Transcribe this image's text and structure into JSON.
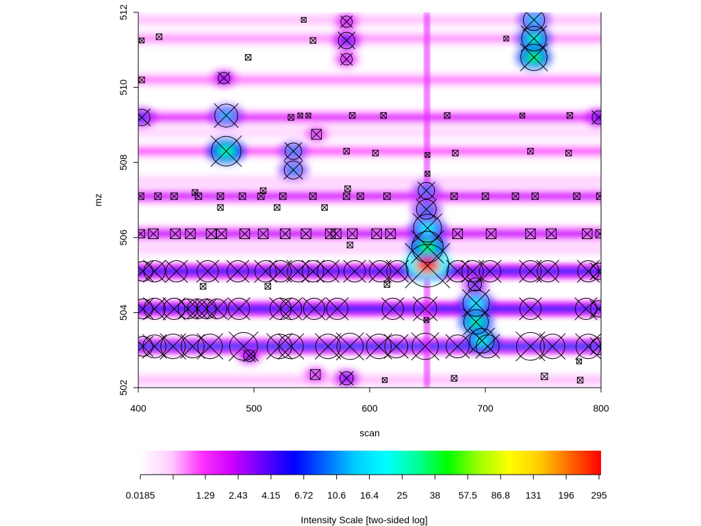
{
  "chart_data": {
    "type": "heatmap",
    "xlabel": "scan",
    "ylabel": "mz",
    "xlim": [
      400,
      800
    ],
    "ylim": [
      502,
      512
    ],
    "x_ticks": [
      400,
      500,
      600,
      700,
      800
    ],
    "y_ticks": [
      502,
      504,
      506,
      508,
      510,
      512
    ],
    "colorbar": {
      "title": "Intensity Scale [two-sided log]",
      "tick_labels": [
        "0.0185",
        "1.29",
        "2.43",
        "4.15",
        "6.72",
        "10.6",
        "16.4",
        "25",
        "38",
        "57.5",
        "86.8",
        "131",
        "196",
        "295"
      ],
      "colors": [
        "#ffffff",
        "#ffccff",
        "#ff33ff",
        "#cc00ff",
        "#6600ff",
        "#0000ff",
        "#0066ff",
        "#00ccff",
        "#00ffff",
        "#00ff99",
        "#00ff00",
        "#99ff00",
        "#ffff00",
        "#ffcc00",
        "#ff6600",
        "#ff0000"
      ]
    },
    "bands": [
      {
        "mz": 503.1,
        "level": 0.38
      },
      {
        "mz": 504.1,
        "level": 0.36
      },
      {
        "mz": 505.1,
        "level": 0.36
      },
      {
        "mz": 506.1,
        "level": 0.2
      },
      {
        "mz": 507.1,
        "level": 0.19
      },
      {
        "mz": 509.2,
        "level": 0.17
      },
      {
        "mz": 508.3,
        "level": 0.12
      },
      {
        "mz": 510.2,
        "level": 0.1
      },
      {
        "mz": 511.3,
        "level": 0.09
      },
      {
        "mz": 502.2,
        "level": 0.07
      },
      {
        "mz": 511.8,
        "level": 0.07
      },
      {
        "mz": 505.7,
        "level": 0.06
      },
      {
        "mz": 507.5,
        "level": 0.06
      },
      {
        "mz": 508.8,
        "level": 0.05
      }
    ],
    "peaks": [
      {
        "scan": 650,
        "mz": 505.25,
        "level": 0.97,
        "size": 2.6
      },
      {
        "scan": 650,
        "mz": 505.75,
        "level": 0.62,
        "size": 1.9
      },
      {
        "scan": 650,
        "mz": 506.25,
        "level": 0.52,
        "size": 1.7
      },
      {
        "scan": 649,
        "mz": 506.75,
        "level": 0.42,
        "size": 1.2
      },
      {
        "scan": 649,
        "mz": 507.25,
        "level": 0.42,
        "size": 1.0
      },
      {
        "scan": 742,
        "mz": 511.8,
        "level": 0.48,
        "size": 1.3
      },
      {
        "scan": 742,
        "mz": 511.3,
        "level": 0.58,
        "size": 1.5
      },
      {
        "scan": 742,
        "mz": 510.8,
        "level": 0.64,
        "size": 1.6
      },
      {
        "scan": 476,
        "mz": 508.3,
        "level": 0.6,
        "size": 1.8
      },
      {
        "scan": 476,
        "mz": 509.25,
        "level": 0.46,
        "size": 1.4
      },
      {
        "scan": 534,
        "mz": 508.3,
        "level": 0.44,
        "size": 1.0
      },
      {
        "scan": 534,
        "mz": 507.8,
        "level": 0.44,
        "size": 1.1
      },
      {
        "scan": 692,
        "mz": 504.25,
        "level": 0.52,
        "size": 1.6
      },
      {
        "scan": 692,
        "mz": 503.75,
        "level": 0.6,
        "size": 1.5
      },
      {
        "scan": 697,
        "mz": 503.25,
        "level": 0.56,
        "size": 1.5
      },
      {
        "scan": 691,
        "mz": 504.75,
        "level": 0.38,
        "size": 0.8
      },
      {
        "scan": 403,
        "mz": 509.2,
        "level": 0.38,
        "size": 1.0
      },
      {
        "scan": 798,
        "mz": 509.2,
        "level": 0.34,
        "size": 0.8
      },
      {
        "scan": 580,
        "mz": 511.25,
        "level": 0.36,
        "size": 1.0
      },
      {
        "scan": 580,
        "mz": 511.75,
        "level": 0.24,
        "size": 0.7
      },
      {
        "scan": 580,
        "mz": 510.75,
        "level": 0.24,
        "size": 0.7
      },
      {
        "scan": 580,
        "mz": 502.25,
        "level": 0.32,
        "size": 0.8
      },
      {
        "scan": 496,
        "mz": 502.85,
        "level": 0.3,
        "size": 0.7
      },
      {
        "scan": 474,
        "mz": 510.25,
        "level": 0.3,
        "size": 0.7
      },
      {
        "scan": 554,
        "mz": 508.75,
        "level": 0.22,
        "size": 0.6
      },
      {
        "scan": 553,
        "mz": 502.35,
        "level": 0.22,
        "size": 0.6
      }
    ],
    "markers": [
      {
        "scan": 404,
        "mz": 503.1,
        "size": 1.2
      },
      {
        "scan": 414,
        "mz": 503.1,
        "size": 1.4
      },
      {
        "scan": 430,
        "mz": 503.1,
        "size": 1.5
      },
      {
        "scan": 447,
        "mz": 503.1,
        "size": 1.4
      },
      {
        "scan": 462,
        "mz": 503.1,
        "size": 1.5
      },
      {
        "scan": 491,
        "mz": 503.1,
        "size": 1.7
      },
      {
        "scan": 522,
        "mz": 503.1,
        "size": 1.5
      },
      {
        "scan": 532,
        "mz": 503.1,
        "size": 1.5
      },
      {
        "scan": 564,
        "mz": 503.1,
        "size": 1.5
      },
      {
        "scan": 583,
        "mz": 503.1,
        "size": 1.6
      },
      {
        "scan": 608,
        "mz": 503.1,
        "size": 1.5
      },
      {
        "scan": 623,
        "mz": 503.1,
        "size": 1.4
      },
      {
        "scan": 648,
        "mz": 503.1,
        "size": 1.6
      },
      {
        "scan": 676,
        "mz": 503.1,
        "size": 1.4
      },
      {
        "scan": 702,
        "mz": 503.1,
        "size": 1.4
      },
      {
        "scan": 739,
        "mz": 503.1,
        "size": 1.7
      },
      {
        "scan": 758,
        "mz": 503.1,
        "size": 1.5
      },
      {
        "scan": 789,
        "mz": 503.1,
        "size": 1.5
      },
      {
        "scan": 798,
        "mz": 503.1,
        "size": 1.0
      },
      {
        "scan": 404,
        "mz": 504.1,
        "size": 1.2
      },
      {
        "scan": 414,
        "mz": 504.1,
        "size": 1.3
      },
      {
        "scan": 431,
        "mz": 504.1,
        "size": 1.3
      },
      {
        "scan": 443,
        "mz": 504.1,
        "size": 1.2
      },
      {
        "scan": 451,
        "mz": 504.1,
        "size": 1.2
      },
      {
        "scan": 459,
        "mz": 504.1,
        "size": 1.2
      },
      {
        "scan": 468,
        "mz": 504.1,
        "size": 1.2
      },
      {
        "scan": 487,
        "mz": 504.1,
        "size": 1.3
      },
      {
        "scan": 523,
        "mz": 504.1,
        "size": 1.3
      },
      {
        "scan": 532,
        "mz": 504.1,
        "size": 1.3
      },
      {
        "scan": 552,
        "mz": 504.1,
        "size": 1.3
      },
      {
        "scan": 572,
        "mz": 504.1,
        "size": 1.3
      },
      {
        "scan": 620,
        "mz": 504.1,
        "size": 1.3
      },
      {
        "scan": 648,
        "mz": 504.1,
        "size": 1.4
      },
      {
        "scan": 739,
        "mz": 504.1,
        "size": 1.3
      },
      {
        "scan": 787,
        "mz": 504.1,
        "size": 1.3
      },
      {
        "scan": 798,
        "mz": 504.1,
        "size": 1.0
      },
      {
        "scan": 404,
        "mz": 505.1,
        "size": 1.2
      },
      {
        "scan": 414,
        "mz": 505.1,
        "size": 1.3
      },
      {
        "scan": 433,
        "mz": 505.1,
        "size": 1.3
      },
      {
        "scan": 460,
        "mz": 505.1,
        "size": 1.3
      },
      {
        "scan": 486,
        "mz": 505.1,
        "size": 1.3
      },
      {
        "scan": 510,
        "mz": 505.1,
        "size": 1.3
      },
      {
        "scan": 523,
        "mz": 505.1,
        "size": 1.3
      },
      {
        "scan": 538,
        "mz": 505.1,
        "size": 1.3
      },
      {
        "scan": 551,
        "mz": 505.1,
        "size": 1.3
      },
      {
        "scan": 564,
        "mz": 505.1,
        "size": 1.3
      },
      {
        "scan": 587,
        "mz": 505.1,
        "size": 1.3
      },
      {
        "scan": 609,
        "mz": 505.1,
        "size": 1.3
      },
      {
        "scan": 624,
        "mz": 505.1,
        "size": 1.3
      },
      {
        "scan": 676,
        "mz": 505.1,
        "size": 1.3
      },
      {
        "scan": 689,
        "mz": 505.1,
        "size": 1.3
      },
      {
        "scan": 704,
        "mz": 505.1,
        "size": 1.3
      },
      {
        "scan": 739,
        "mz": 505.1,
        "size": 1.3
      },
      {
        "scan": 754,
        "mz": 505.1,
        "size": 1.3
      },
      {
        "scan": 789,
        "mz": 505.1,
        "size": 1.3
      },
      {
        "scan": 798,
        "mz": 505.1,
        "size": 1.0
      },
      {
        "scan": 402,
        "mz": 506.1,
        "size": 0.5
      },
      {
        "scan": 413,
        "mz": 506.1,
        "size": 0.6
      },
      {
        "scan": 432,
        "mz": 506.1,
        "size": 0.6
      },
      {
        "scan": 445,
        "mz": 506.1,
        "size": 0.6
      },
      {
        "scan": 463,
        "mz": 506.1,
        "size": 0.6
      },
      {
        "scan": 472,
        "mz": 506.1,
        "size": 0.6
      },
      {
        "scan": 492,
        "mz": 506.1,
        "size": 0.6
      },
      {
        "scan": 508,
        "mz": 506.1,
        "size": 0.6
      },
      {
        "scan": 527,
        "mz": 506.1,
        "size": 0.6
      },
      {
        "scan": 545,
        "mz": 506.1,
        "size": 0.6
      },
      {
        "scan": 566,
        "mz": 506.1,
        "size": 0.6
      },
      {
        "scan": 571,
        "mz": 506.1,
        "size": 0.6
      },
      {
        "scan": 585,
        "mz": 506.1,
        "size": 0.6
      },
      {
        "scan": 606,
        "mz": 506.1,
        "size": 0.6
      },
      {
        "scan": 618,
        "mz": 506.1,
        "size": 0.6
      },
      {
        "scan": 676,
        "mz": 506.1,
        "size": 0.6
      },
      {
        "scan": 705,
        "mz": 506.1,
        "size": 0.6
      },
      {
        "scan": 739,
        "mz": 506.1,
        "size": 0.6
      },
      {
        "scan": 757,
        "mz": 506.1,
        "size": 0.6
      },
      {
        "scan": 788,
        "mz": 506.1,
        "size": 0.6
      },
      {
        "scan": 799,
        "mz": 506.1,
        "size": 0.5
      },
      {
        "scan": 402,
        "mz": 507.1,
        "size": 0.4
      },
      {
        "scan": 417,
        "mz": 507.1,
        "size": 0.4
      },
      {
        "scan": 431,
        "mz": 507.1,
        "size": 0.4
      },
      {
        "scan": 452,
        "mz": 507.1,
        "size": 0.4
      },
      {
        "scan": 471,
        "mz": 507.1,
        "size": 0.4
      },
      {
        "scan": 490,
        "mz": 507.1,
        "size": 0.4
      },
      {
        "scan": 506,
        "mz": 507.1,
        "size": 0.4
      },
      {
        "scan": 525,
        "mz": 507.1,
        "size": 0.4
      },
      {
        "scan": 551,
        "mz": 507.1,
        "size": 0.4
      },
      {
        "scan": 580,
        "mz": 507.1,
        "size": 0.4
      },
      {
        "scan": 592,
        "mz": 507.1,
        "size": 0.4
      },
      {
        "scan": 615,
        "mz": 507.1,
        "size": 0.4
      },
      {
        "scan": 673,
        "mz": 507.1,
        "size": 0.4
      },
      {
        "scan": 700,
        "mz": 507.1,
        "size": 0.4
      },
      {
        "scan": 726,
        "mz": 507.1,
        "size": 0.4
      },
      {
        "scan": 743,
        "mz": 507.1,
        "size": 0.4
      },
      {
        "scan": 779,
        "mz": 507.1,
        "size": 0.4
      },
      {
        "scan": 799,
        "mz": 507.1,
        "size": 0.4
      },
      {
        "scan": 449,
        "mz": 507.2,
        "size": 0.35
      },
      {
        "scan": 508,
        "mz": 507.25,
        "size": 0.35
      },
      {
        "scan": 581,
        "mz": 507.3,
        "size": 0.35
      },
      {
        "scan": 471,
        "mz": 506.8,
        "size": 0.35
      },
      {
        "scan": 520,
        "mz": 506.8,
        "size": 0.35
      },
      {
        "scan": 561,
        "mz": 506.8,
        "size": 0.35
      },
      {
        "scan": 583,
        "mz": 505.8,
        "size": 0.35
      },
      {
        "scan": 512,
        "mz": 504.7,
        "size": 0.35
      },
      {
        "scan": 615,
        "mz": 504.75,
        "size": 0.35
      },
      {
        "scan": 456,
        "mz": 504.7,
        "size": 0.35
      },
      {
        "scan": 540,
        "mz": 509.25,
        "size": 0.3
      },
      {
        "scan": 547,
        "mz": 509.25,
        "size": 0.3
      },
      {
        "scan": 585,
        "mz": 509.25,
        "size": 0.35
      },
      {
        "scan": 612,
        "mz": 509.25,
        "size": 0.35
      },
      {
        "scan": 667,
        "mz": 509.25,
        "size": 0.35
      },
      {
        "scan": 732,
        "mz": 509.25,
        "size": 0.3
      },
      {
        "scan": 773,
        "mz": 509.25,
        "size": 0.35
      },
      {
        "scan": 580,
        "mz": 508.3,
        "size": 0.35
      },
      {
        "scan": 605,
        "mz": 508.25,
        "size": 0.35
      },
      {
        "scan": 674,
        "mz": 508.25,
        "size": 0.35
      },
      {
        "scan": 739,
        "mz": 508.3,
        "size": 0.35
      },
      {
        "scan": 772,
        "mz": 508.25,
        "size": 0.35
      },
      {
        "scan": 532,
        "mz": 509.2,
        "size": 0.35
      },
      {
        "scan": 403,
        "mz": 511.25,
        "size": 0.3
      },
      {
        "scan": 418,
        "mz": 511.35,
        "size": 0.35
      },
      {
        "scan": 495,
        "mz": 510.8,
        "size": 0.35
      },
      {
        "scan": 551,
        "mz": 511.25,
        "size": 0.35
      },
      {
        "scan": 543,
        "mz": 511.8,
        "size": 0.3
      },
      {
        "scan": 718,
        "mz": 511.3,
        "size": 0.3
      },
      {
        "scan": 403,
        "mz": 510.2,
        "size": 0.35
      },
      {
        "scan": 613,
        "mz": 502.2,
        "size": 0.3
      },
      {
        "scan": 673,
        "mz": 502.25,
        "size": 0.35
      },
      {
        "scan": 751,
        "mz": 502.3,
        "size": 0.4
      },
      {
        "scan": 782,
        "mz": 502.2,
        "size": 0.35
      },
      {
        "scan": 781,
        "mz": 502.7,
        "size": 0.3
      },
      {
        "scan": 650,
        "mz": 507.7,
        "size": 0.3
      },
      {
        "scan": 650,
        "mz": 508.2,
        "size": 0.3
      },
      {
        "scan": 649,
        "mz": 503.8,
        "size": 0.3
      },
      {
        "scan": 650,
        "mz": 505.25,
        "size": 2.6
      },
      {
        "scan": 650,
        "mz": 505.75,
        "size": 1.9
      },
      {
        "scan": 650,
        "mz": 506.25,
        "size": 1.7
      },
      {
        "scan": 649,
        "mz": 506.75,
        "size": 1.2
      },
      {
        "scan": 649,
        "mz": 507.25,
        "size": 1.0
      },
      {
        "scan": 742,
        "mz": 511.8,
        "size": 1.3
      },
      {
        "scan": 742,
        "mz": 511.3,
        "size": 1.5
      },
      {
        "scan": 742,
        "mz": 510.8,
        "size": 1.6
      },
      {
        "scan": 476,
        "mz": 508.3,
        "size": 1.8
      },
      {
        "scan": 476,
        "mz": 509.25,
        "size": 1.4
      },
      {
        "scan": 534,
        "mz": 508.3,
        "size": 1.0
      },
      {
        "scan": 534,
        "mz": 507.8,
        "size": 1.1
      },
      {
        "scan": 692,
        "mz": 504.25,
        "size": 1.6
      },
      {
        "scan": 692,
        "mz": 503.75,
        "size": 1.5
      },
      {
        "scan": 697,
        "mz": 503.25,
        "size": 1.5
      },
      {
        "scan": 691,
        "mz": 504.75,
        "size": 0.8
      },
      {
        "scan": 403,
        "mz": 509.2,
        "size": 1.0
      },
      {
        "scan": 798,
        "mz": 509.2,
        "size": 0.8
      },
      {
        "scan": 580,
        "mz": 511.25,
        "size": 1.0
      },
      {
        "scan": 580,
        "mz": 511.75,
        "size": 0.7
      },
      {
        "scan": 580,
        "mz": 510.75,
        "size": 0.7
      },
      {
        "scan": 580,
        "mz": 502.25,
        "size": 0.8
      },
      {
        "scan": 496,
        "mz": 502.85,
        "size": 0.7
      },
      {
        "scan": 474,
        "mz": 510.25,
        "size": 0.7
      },
      {
        "scan": 554,
        "mz": 508.75,
        "size": 0.6
      },
      {
        "scan": 553,
        "mz": 502.35,
        "size": 0.6
      }
    ]
  }
}
